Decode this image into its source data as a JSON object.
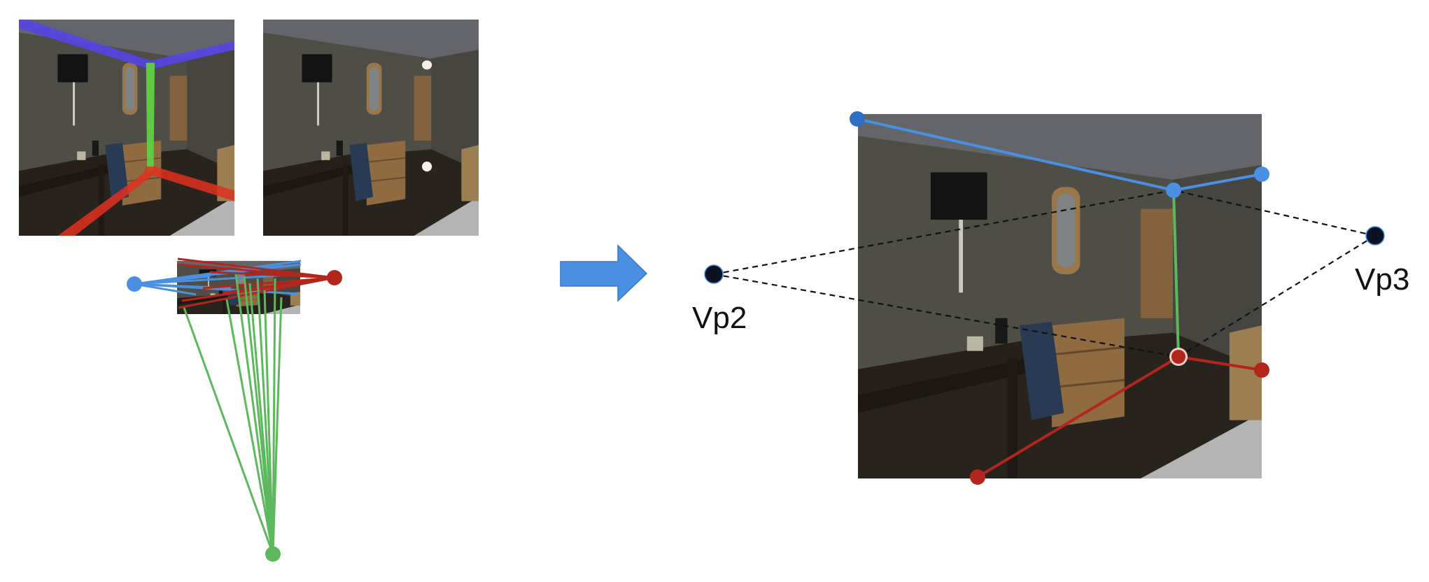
{
  "labels": {
    "vp2": "Vp2",
    "vp3": "Vp3"
  },
  "colors": {
    "background": "#ffffff",
    "room_wall": "#5b5a52",
    "room_ceiling": "#6e7075",
    "room_floor": "#2f2620",
    "furniture_wood": "#9c7648",
    "desk": "#2d231e",
    "tv": "#141414",
    "chair": "#2d3f5a",
    "bed": "#c9c9c9",
    "line_blue": "#4a90e2",
    "line_blue_dark": "#2e6fc4",
    "line_red": "#b3261e",
    "line_green": "#5cb85c",
    "segmentation_blue": "#5545e6",
    "segmentation_green": "#60d040",
    "segmentation_red": "#e03020",
    "vanishing_point": "#0c1222",
    "arrow": "#4a90e2",
    "dashed_line": "#111111"
  },
  "icons": {
    "transition_arrow": "right-arrow-icon"
  }
}
